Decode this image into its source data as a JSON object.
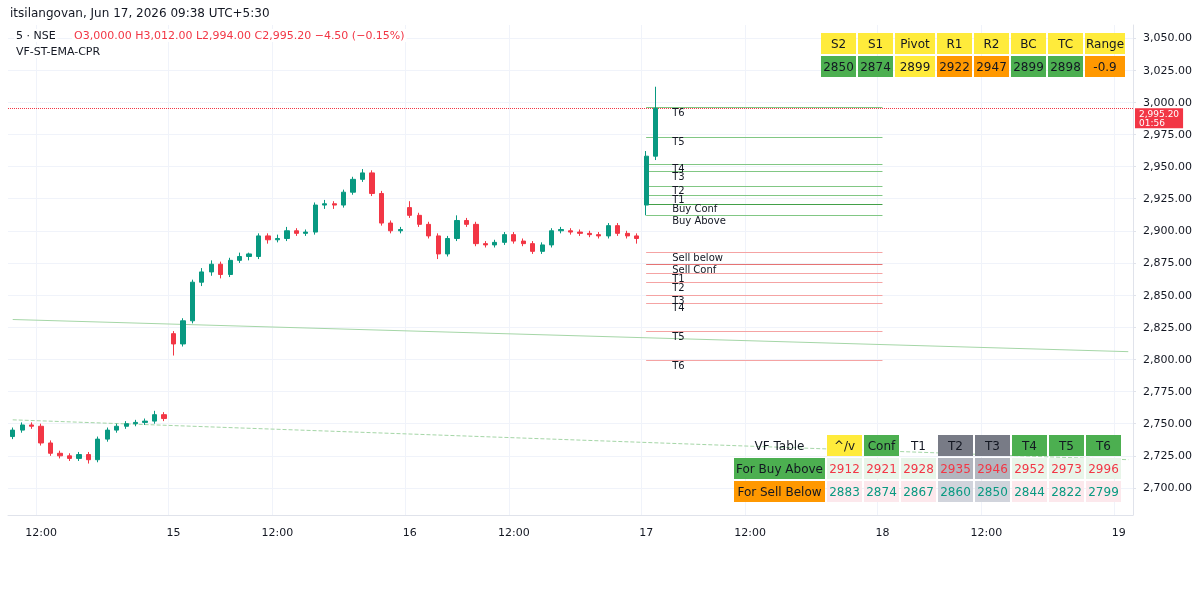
{
  "chart_data": {
    "type": "candlestick",
    "title": "5 · NSE",
    "subtitle": "O3,000.00 H3,012.00 L2,994.00 C2,995.20 −4.50 (−0.15%)",
    "categories": [
      null,
      null,
      null,
      "12:00",
      null,
      null,
      null,
      null,
      null,
      null,
      null,
      null,
      null,
      null,
      null,
      null,
      null,
      "15",
      null,
      null,
      null,
      null,
      null,
      null,
      null,
      null,
      null,
      null,
      "12:00",
      null,
      null,
      null,
      null,
      null,
      null,
      null,
      null,
      null,
      null,
      null,
      null,
      null,
      "16",
      null,
      null,
      null,
      null,
      null,
      null,
      null,
      null,
      null,
      null,
      "12:00",
      null,
      null,
      null,
      null,
      null,
      null,
      null,
      null,
      null,
      null,
      null,
      null,
      null,
      "17",
      null,
      null,
      null,
      null,
      null,
      null,
      null,
      null,
      null,
      null,
      "12:00",
      null,
      null,
      null,
      null,
      null,
      null,
      null,
      null,
      null,
      null,
      null,
      null,
      null,
      "18",
      null,
      null,
      null,
      null,
      null,
      null,
      null,
      null,
      null,
      null,
      "12:00",
      null,
      null,
      null,
      null,
      null,
      null,
      null,
      null,
      null,
      null,
      null,
      null,
      null,
      "19",
      null
    ],
    "ohlc": [
      [
        2740,
        2747,
        2738,
        2745
      ],
      [
        2745,
        2751,
        2743,
        2749
      ],
      [
        2749,
        2751,
        2746,
        2748
      ],
      [
        2748,
        2750,
        2733,
        2735
      ],
      [
        2735,
        2737,
        2725,
        2727
      ],
      [
        2727,
        2729,
        2723,
        2725
      ],
      [
        2725,
        2727,
        2721,
        2723
      ],
      [
        2723,
        2728,
        2721,
        2726
      ],
      [
        2726,
        2728,
        2719,
        2722
      ],
      [
        2722,
        2740,
        2720,
        2738
      ],
      [
        2738,
        2747,
        2736,
        2745
      ],
      [
        2745,
        2750,
        2743,
        2748
      ],
      [
        2748,
        2752,
        2746,
        2750
      ],
      [
        2750,
        2753,
        2748,
        2751
      ],
      [
        2751,
        2754,
        2749,
        2752
      ],
      [
        2752,
        2760,
        2750,
        2757
      ],
      [
        2757,
        2759,
        2752,
        2754
      ],
      [
        2820,
        2822,
        2803,
        2812
      ],
      [
        2812,
        2832,
        2810,
        2830
      ],
      [
        2830,
        2862,
        2828,
        2860
      ],
      [
        2860,
        2871,
        2857,
        2868
      ],
      [
        2868,
        2877,
        2865,
        2874
      ],
      [
        2874,
        2876,
        2863,
        2866
      ],
      [
        2866,
        2879,
        2864,
        2877
      ],
      [
        2877,
        2883,
        2875,
        2880
      ],
      [
        2880,
        2883,
        2877,
        2882
      ],
      [
        2880,
        2898,
        2878,
        2896
      ],
      [
        2896,
        2898,
        2890,
        2893
      ],
      [
        2893,
        2897,
        2891,
        2894
      ],
      [
        2894,
        2903,
        2892,
        2900
      ],
      [
        2900,
        2902,
        2896,
        2898
      ],
      [
        2898,
        2901,
        2896,
        2899
      ],
      [
        2899,
        2922,
        2897,
        2920
      ],
      [
        2920,
        2924,
        2917,
        2921
      ],
      [
        2921,
        2923,
        2917,
        2920
      ],
      [
        2920,
        2932,
        2918,
        2930
      ],
      [
        2930,
        2942,
        2928,
        2940
      ],
      [
        2940,
        2948,
        2938,
        2945
      ],
      [
        2945,
        2947,
        2927,
        2929
      ],
      [
        2929,
        2931,
        2904,
        2906
      ],
      [
        2906,
        2908,
        2898,
        2900
      ],
      [
        2900,
        2903,
        2898,
        2901
      ],
      [
        2918,
        2923,
        2910,
        2912
      ],
      [
        2912,
        2914,
        2903,
        2905
      ],
      [
        2905,
        2907,
        2894,
        2896
      ],
      [
        2896,
        2898,
        2878,
        2882
      ],
      [
        2882,
        2896,
        2880,
        2894
      ],
      [
        2894,
        2912,
        2892,
        2908
      ],
      [
        2908,
        2910,
        2903,
        2905
      ],
      [
        2905,
        2907,
        2888,
        2890
      ],
      [
        2890,
        2892,
        2887,
        2889
      ],
      [
        2889,
        2893,
        2887,
        2891
      ],
      [
        2891,
        2899,
        2889,
        2897
      ],
      [
        2897,
        2899,
        2890,
        2892
      ],
      [
        2892,
        2894,
        2888,
        2890
      ],
      [
        2890,
        2892,
        2882,
        2884
      ],
      [
        2884,
        2891,
        2882,
        2889
      ],
      [
        2889,
        2902,
        2887,
        2900
      ],
      [
        2900,
        2903,
        2898,
        2901
      ],
      [
        2900,
        2902,
        2897,
        2899
      ],
      [
        2899,
        2901,
        2896,
        2898
      ],
      [
        2898,
        2900,
        2895,
        2897
      ],
      [
        2897,
        2899,
        2894,
        2896
      ],
      [
        2896,
        2906,
        2894,
        2904
      ],
      [
        2904,
        2906,
        2896,
        2898
      ],
      [
        2898,
        2900,
        2894,
        2896
      ],
      [
        2896,
        2898,
        2890,
        2894
      ],
      [
        2920,
        2962,
        2912,
        2958
      ],
      [
        2958,
        3012,
        2955,
        2995.2
      ],
      null,
      null,
      null,
      null,
      null,
      null,
      null,
      null,
      null,
      null,
      null,
      null,
      null,
      null,
      null,
      null,
      null,
      null,
      null,
      null,
      null,
      null,
      null,
      null,
      null,
      null,
      null,
      null,
      null,
      null,
      null,
      null,
      null,
      null,
      null,
      null,
      null,
      null,
      null,
      null,
      null,
      null,
      null,
      null,
      null,
      null,
      null,
      null,
      null,
      null
    ],
    "series": [
      {
        "type": "line",
        "color": "#a5d6a7",
        "values": [
          2831,
          null,
          null,
          null,
          null,
          null,
          null,
          null,
          null,
          null,
          null,
          null,
          null,
          null,
          null,
          null,
          null,
          null,
          null,
          null,
          null,
          null,
          null,
          null,
          null,
          null,
          null,
          null,
          null,
          null,
          null,
          null,
          null,
          null,
          null,
          null,
          null,
          null,
          null,
          null,
          null,
          null,
          null,
          null,
          null,
          null,
          null,
          null,
          null,
          null,
          null,
          null,
          null,
          null,
          null,
          null,
          null,
          null,
          null,
          null,
          null,
          null,
          null,
          null,
          null,
          null,
          null,
          null,
          null,
          null,
          null,
          null,
          null,
          null,
          null,
          null,
          null,
          null,
          null,
          null,
          null,
          null,
          null,
          null,
          null,
          null,
          null,
          null,
          null,
          null,
          null,
          null,
          null,
          null,
          null,
          null,
          null,
          null,
          null,
          null,
          null,
          null,
          null,
          null,
          null,
          null,
          null,
          null,
          null,
          null,
          null,
          null,
          null,
          null,
          null,
          null,
          null,
          null,
          2806
        ]
      },
      {
        "type": "line",
        "color": "#a5d6a7",
        "line_style": "dashed",
        "values": [
          2753,
          null,
          null,
          null,
          null,
          null,
          null,
          null,
          null,
          null,
          null,
          null,
          null,
          null,
          null,
          null,
          null,
          null,
          null,
          null,
          null,
          null,
          null,
          null,
          null,
          null,
          null,
          null,
          null,
          null,
          null,
          null,
          null,
          null,
          null,
          null,
          null,
          null,
          null,
          null,
          null,
          null,
          null,
          null,
          null,
          null,
          null,
          null,
          null,
          null,
          null,
          null,
          null,
          null,
          null,
          null,
          null,
          null,
          null,
          null,
          null,
          null,
          null,
          null,
          null,
          null,
          null,
          null,
          null,
          null,
          null,
          null,
          null,
          null,
          null,
          null,
          null,
          null,
          null,
          null,
          null,
          null,
          null,
          null,
          null,
          null,
          null,
          null,
          null,
          null,
          null,
          null,
          null,
          null,
          null,
          null,
          null,
          null,
          null,
          null,
          null,
          null,
          null,
          null,
          null,
          null,
          null,
          null,
          null,
          null,
          null,
          null,
          null,
          null,
          null,
          null,
          null,
          null,
          2722
        ]
      }
    ],
    "ylim": [
      2679,
      3060
    ],
    "yticks": [
      {
        "value": 2700,
        "label": "2,700.00"
      },
      {
        "value": 2725,
        "label": "2,725.00"
      },
      {
        "value": 2750,
        "label": "2,750.00"
      },
      {
        "value": 2775,
        "label": "2,775.00"
      },
      {
        "value": 2800,
        "label": "2,800.00"
      },
      {
        "value": 2825,
        "label": "2,825.00"
      },
      {
        "value": 2850,
        "label": "2,850.00"
      },
      {
        "value": 2875,
        "label": "2,875.00"
      },
      {
        "value": 2900,
        "label": "2,900.00"
      },
      {
        "value": 2925,
        "label": "2,925.00"
      },
      {
        "value": 2950,
        "label": "2,950.00"
      },
      {
        "value": 2975,
        "label": "2,975.00"
      },
      {
        "value": 3000,
        "label": "3,000.00"
      },
      {
        "value": 3025,
        "label": "3,025.00"
      },
      {
        "value": 3050,
        "label": "3,050.00"
      }
    ],
    "grid": true,
    "ref_lines": [
      {
        "axis": "y",
        "value": 2995.2,
        "label": "2,995.20",
        "color": "#f23645",
        "line_style": "dotted"
      },
      {
        "axis": "y",
        "value": 2996,
        "label": "T6",
        "color": "#81c784"
      },
      {
        "axis": "y",
        "value": 2973,
        "label": "T5",
        "color": "#81c784"
      },
      {
        "axis": "y",
        "value": 2952,
        "label": "T4",
        "color": "#81c784"
      },
      {
        "axis": "y",
        "value": 2946,
        "label": "T3",
        "color": "#81c784"
      },
      {
        "axis": "y",
        "value": 2935,
        "label": "T2",
        "color": "#81c784"
      },
      {
        "axis": "y",
        "value": 2928,
        "label": "T1",
        "color": "#81c784"
      },
      {
        "axis": "y",
        "value": 2921,
        "label": "Buy Conf",
        "color": "#43a047"
      },
      {
        "axis": "y",
        "value": 2912,
        "label": "Buy Above",
        "color": "#81c784"
      },
      {
        "axis": "y",
        "value": 2883,
        "label": "Sell below",
        "color": "#f5a3a3"
      },
      {
        "axis": "y",
        "value": 2874,
        "label": "Sell Conf",
        "color": "#e57373"
      },
      {
        "axis": "y",
        "value": 2867,
        "label": "T1",
        "color": "#f5a3a3"
      },
      {
        "axis": "y",
        "value": 2860,
        "label": "T2",
        "color": "#f5a3a3"
      },
      {
        "axis": "y",
        "value": 2850,
        "label": "T3",
        "color": "#f5a3a3"
      },
      {
        "axis": "y",
        "value": 2844,
        "label": "T4",
        "color": "#f5a3a3"
      },
      {
        "axis": "y",
        "value": 2822,
        "label": "T5",
        "color": "#f5a3a3"
      },
      {
        "axis": "y",
        "value": 2799,
        "label": "T6",
        "color": "#f5a3a3"
      }
    ],
    "annotations": [
      "itsilangovan, Jun 17, 2026 09:38 UTC+5:30",
      "VF-ST-EMA-CPR",
      "01:56",
      "S2",
      "S1",
      "Pivot",
      "R1",
      "R2",
      "BC",
      "TC",
      "Range",
      "2850",
      "2874",
      "2899",
      "2922",
      "2947",
      "2899",
      "2898",
      "-0.9",
      "VF Table",
      "^/v",
      "Conf",
      "T1",
      "T2",
      "T3",
      "T4",
      "T5",
      "T6",
      "For Buy Above",
      "2912",
      "2921",
      "2928",
      "2935",
      "2946",
      "2952",
      "2973",
      "2996",
      "For Sell Below",
      "2883",
      "2874",
      "2867",
      "2860",
      "2850",
      "2844",
      "2822",
      "2799"
    ]
  }
}
